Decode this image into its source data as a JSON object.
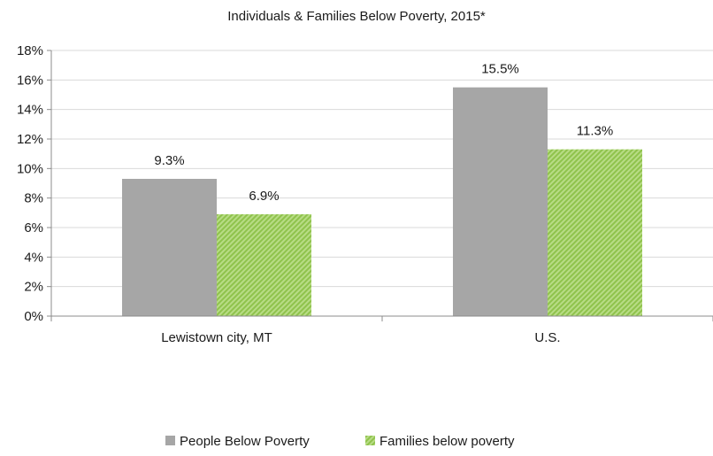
{
  "chart_data": {
    "type": "bar",
    "title": "Individuals & Families Below Poverty, 2015*",
    "categories": [
      "Lewistown city, MT",
      "U.S."
    ],
    "series": [
      {
        "name": "People Below Poverty",
        "values": [
          9.3,
          15.5
        ],
        "labels": [
          "9.3%",
          "15.5%"
        ],
        "color": "#a6a6a6",
        "pattern": "solid"
      },
      {
        "name": "Families below poverty",
        "values": [
          6.9,
          11.3
        ],
        "labels": [
          "6.9%",
          "11.3%"
        ],
        "color": "#9ccc5a",
        "pattern": "diagonal-stripes"
      }
    ],
    "ylim": [
      0,
      18
    ],
    "yticks": [
      0,
      2,
      4,
      6,
      8,
      10,
      12,
      14,
      16,
      18
    ],
    "ytick_labels": [
      "0%",
      "2%",
      "4%",
      "6%",
      "8%",
      "10%",
      "12%",
      "14%",
      "16%",
      "18%"
    ],
    "grid": true,
    "legend_position": "bottom",
    "xlabel": "",
    "ylabel": ""
  }
}
